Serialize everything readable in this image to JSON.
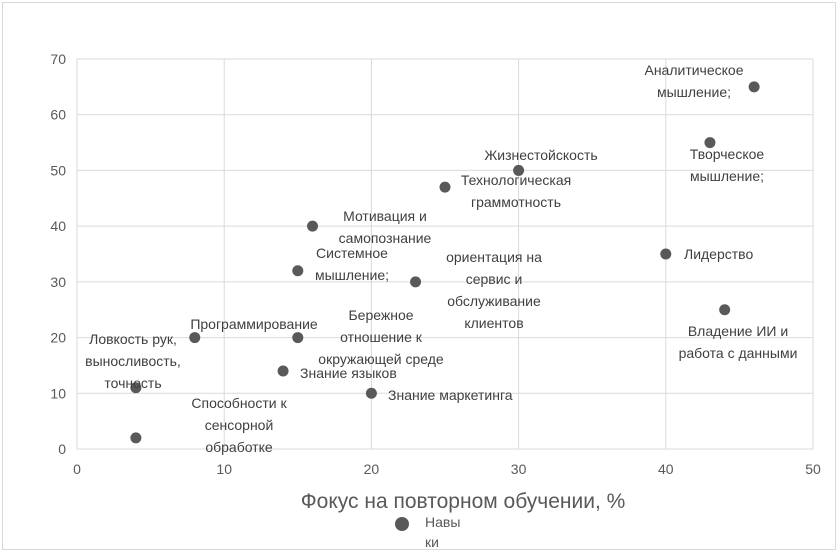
{
  "chart_data": {
    "type": "scatter",
    "xlabel": "Фокус на повторном обучении, %",
    "ylabel": "",
    "xlim": [
      0,
      50
    ],
    "ylim": [
      0,
      70
    ],
    "x_ticks": [
      "0",
      "10",
      "20",
      "30",
      "40",
      "50"
    ],
    "y_ticks": [
      "0",
      "10",
      "20",
      "30",
      "40",
      "50",
      "60",
      "70"
    ],
    "grid": true,
    "legend_position": "bottom",
    "marker_color": "#595959",
    "series": [
      {
        "name": "Навыки",
        "legend_lines": [
          "Навы",
          "ки"
        ],
        "points": [
          {
            "x": 46,
            "y": 65,
            "label": [
              "Аналитическое",
              "мышление;"
            ]
          },
          {
            "x": 43,
            "y": 55,
            "label": [
              "Творческое",
              "мышление;"
            ]
          },
          {
            "x": 30,
            "y": 50,
            "label": [
              "Жизнестойскость"
            ]
          },
          {
            "x": 25,
            "y": 47,
            "label": [
              "Технологическая",
              "граммотность"
            ]
          },
          {
            "x": 16,
            "y": 40,
            "label": [
              "Мотивация и",
              "самопознание"
            ]
          },
          {
            "x": 40,
            "y": 35,
            "label": [
              "Лидерство"
            ]
          },
          {
            "x": 15,
            "y": 32,
            "label": [
              "Системное",
              "мышление;"
            ]
          },
          {
            "x": 23,
            "y": 30,
            "label": [
              "ориентация на",
              "сервис и",
              "обслуживание",
              "клиентов"
            ]
          },
          {
            "x": 44,
            "y": 25,
            "label": [
              "Владение ИИ и",
              "работа с данными"
            ]
          },
          {
            "x": 8,
            "y": 20,
            "label": [
              "Программирование"
            ]
          },
          {
            "x": 15,
            "y": 20,
            "label": [
              "Бережное",
              "отношение к",
              "окружающей среде"
            ]
          },
          {
            "x": 14,
            "y": 14,
            "label": [
              "Знание языков"
            ]
          },
          {
            "x": 4,
            "y": 11,
            "label": [
              "Ловкость рук,",
              "выносливость,",
              "точность"
            ]
          },
          {
            "x": 20,
            "y": 10,
            "label": [
              "Знание маркетинга"
            ]
          },
          {
            "x": 4,
            "y": 2,
            "label": [
              "Способности к",
              "сенсорной",
              "обработке"
            ]
          }
        ]
      }
    ]
  }
}
